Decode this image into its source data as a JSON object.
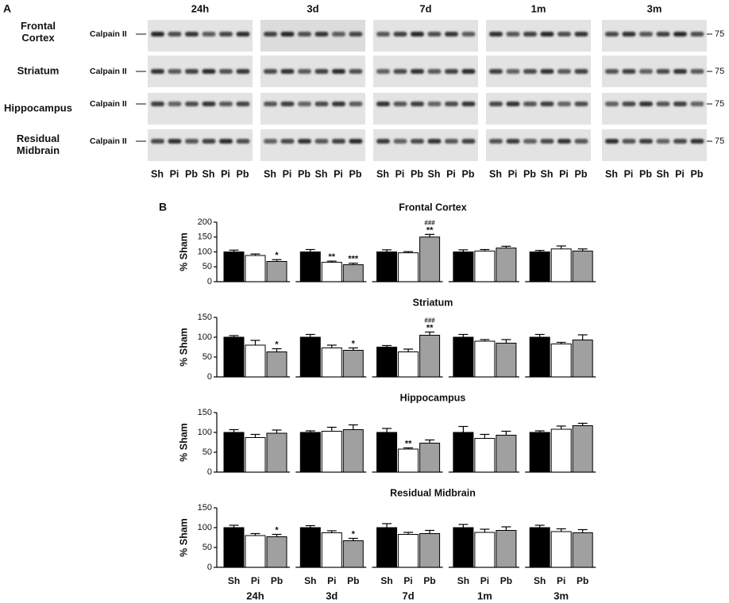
{
  "panel_a": {
    "label": "A",
    "timepoints": [
      "24h",
      "3d",
      "7d",
      "1m",
      "3m"
    ],
    "rows": [
      {
        "lines": [
          "Frontal",
          "Cortex"
        ],
        "protein": "Calpain II",
        "marker": "75"
      },
      {
        "lines": [
          "Striatum"
        ],
        "protein": "Calpain II",
        "marker": "75"
      },
      {
        "lines": [
          "Hippocampus"
        ],
        "protein": "Calpain II",
        "marker": "75"
      },
      {
        "lines": [
          "Residual",
          "Midbrain"
        ],
        "protein": "Calpain II",
        "marker": "75"
      }
    ],
    "lanes": [
      "Sh",
      "Pi",
      "Pb",
      "Sh",
      "Pi",
      "Pb"
    ]
  },
  "panel_b": {
    "label": "B"
  },
  "chart_data": [
    {
      "type": "bar",
      "title": "Frontal Cortex",
      "y_label": "% Sham",
      "ylim": [
        0,
        200
      ],
      "yticks": [
        0,
        50,
        100,
        150,
        200
      ],
      "bar_colors": [
        "#000000",
        "#ffffff",
        "#a0a0a0"
      ],
      "values": [
        100,
        88,
        68,
        100,
        65,
        57,
        100,
        97,
        150,
        100,
        103,
        113,
        100,
        110,
        103
      ],
      "errors": [
        6,
        5,
        6,
        8,
        4,
        5,
        7,
        4,
        9,
        7,
        5,
        6,
        5,
        10,
        7
      ],
      "annotations": [
        {
          "bar": 2,
          "text": "*"
        },
        {
          "bar": 4,
          "text": "**"
        },
        {
          "bar": 5,
          "text": "***"
        },
        {
          "bar": 8,
          "text": "**"
        },
        {
          "bar": 8,
          "text": "###"
        }
      ]
    },
    {
      "type": "bar",
      "title": "Striatum",
      "y_label": "% Sham",
      "ylim": [
        0,
        150
      ],
      "yticks": [
        0,
        50,
        100,
        150
      ],
      "bar_colors": [
        "#000000",
        "#ffffff",
        "#a0a0a0"
      ],
      "values": [
        100,
        80,
        63,
        100,
        73,
        67,
        75,
        63,
        105,
        100,
        90,
        85,
        100,
        83,
        93
      ],
      "errors": [
        4,
        12,
        8,
        7,
        7,
        6,
        4,
        7,
        8,
        7,
        4,
        9,
        7,
        4,
        13
      ],
      "annotations": [
        {
          "bar": 2,
          "text": "*"
        },
        {
          "bar": 5,
          "text": "*"
        },
        {
          "bar": 8,
          "text": "**"
        },
        {
          "bar": 8,
          "text": "###"
        }
      ]
    },
    {
      "type": "bar",
      "title": "Hippocampus",
      "y_label": "% Sham",
      "ylim": [
        0,
        150
      ],
      "yticks": [
        0,
        50,
        100,
        150
      ],
      "bar_colors": [
        "#000000",
        "#ffffff",
        "#a0a0a0"
      ],
      "values": [
        100,
        87,
        98,
        100,
        103,
        107,
        100,
        58,
        73,
        100,
        85,
        93,
        100,
        108,
        117
      ],
      "errors": [
        7,
        8,
        8,
        4,
        10,
        12,
        10,
        3,
        8,
        15,
        10,
        10,
        4,
        8,
        6
      ],
      "annotations": [
        {
          "bar": 7,
          "text": "**"
        }
      ]
    },
    {
      "type": "bar",
      "title": "Residual Midbrain",
      "y_label": "% Sham",
      "ylim": [
        0,
        150
      ],
      "yticks": [
        0,
        50,
        100,
        150
      ],
      "bar_colors": [
        "#000000",
        "#ffffff",
        "#a0a0a0"
      ],
      "values": [
        100,
        80,
        77,
        100,
        87,
        67,
        100,
        83,
        85,
        100,
        88,
        93,
        100,
        90,
        87
      ],
      "errors": [
        6,
        5,
        6,
        5,
        5,
        6,
        10,
        5,
        8,
        8,
        8,
        9,
        6,
        7,
        8
      ],
      "annotations": [
        {
          "bar": 2,
          "text": "*"
        },
        {
          "bar": 5,
          "text": "*"
        }
      ],
      "categories": [
        "Sh",
        "Pi",
        "Pb",
        "Sh",
        "Pi",
        "Pb",
        "Sh",
        "Pi",
        "Pb",
        "Sh",
        "Pi",
        "Pb",
        "Sh",
        "Pi",
        "Pb"
      ],
      "groups": [
        "24h",
        "3d",
        "7d",
        "1m",
        "3m"
      ]
    }
  ]
}
